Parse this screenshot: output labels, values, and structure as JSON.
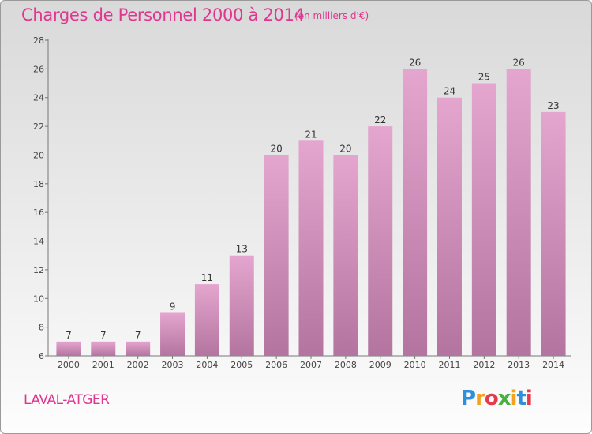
{
  "header": {
    "title": "Charges de Personnel 2000 à 2014",
    "subtitle": "(en milliers d'€)"
  },
  "footer": {
    "town": "LAVAL-ATGER",
    "logo": "Proxiti"
  },
  "colors": {
    "title": "#e0368f",
    "bar_top": "#e4a6cf",
    "bar_bottom": "#b3759f"
  },
  "chart_data": {
    "type": "bar",
    "categories": [
      "2000",
      "2001",
      "2002",
      "2003",
      "2004",
      "2005",
      "2006",
      "2007",
      "2008",
      "2009",
      "2010",
      "2011",
      "2012",
      "2013",
      "2014"
    ],
    "values": [
      7,
      7,
      7,
      9,
      11,
      13,
      20,
      21,
      20,
      22,
      26,
      24,
      25,
      26,
      23
    ],
    "title": "Charges de Personnel 2000 à 2014",
    "subtitle": "(en milliers d'€)",
    "ylim": [
      6,
      28
    ],
    "yticks": [
      6,
      8,
      10,
      12,
      14,
      16,
      18,
      20,
      22,
      24,
      26,
      28
    ],
    "grid": false,
    "legend": "none"
  }
}
